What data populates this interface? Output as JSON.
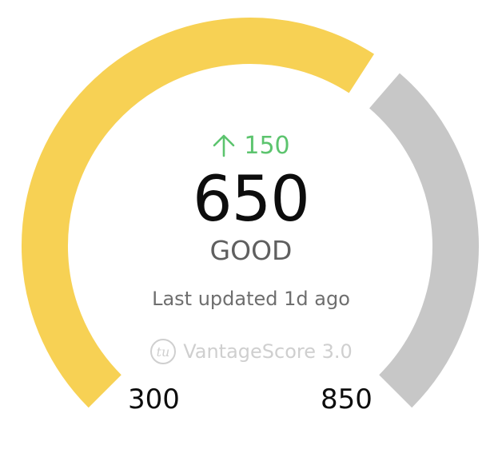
{
  "gauge": {
    "min": 300,
    "max": 850,
    "score": 650,
    "change": "150",
    "rating": "GOOD",
    "last_updated": "Last updated 1d ago",
    "model": "VantageScore 3.0",
    "min_label": "300",
    "max_label": "850"
  },
  "colors": {
    "filled": "#f7d154",
    "remaining": "#c7c7c7",
    "positive": "#5cc46e",
    "brand": "#cfcfcf"
  },
  "icons": {
    "change": "arrow-up-icon",
    "brand_logo": "tu-logo-icon"
  }
}
